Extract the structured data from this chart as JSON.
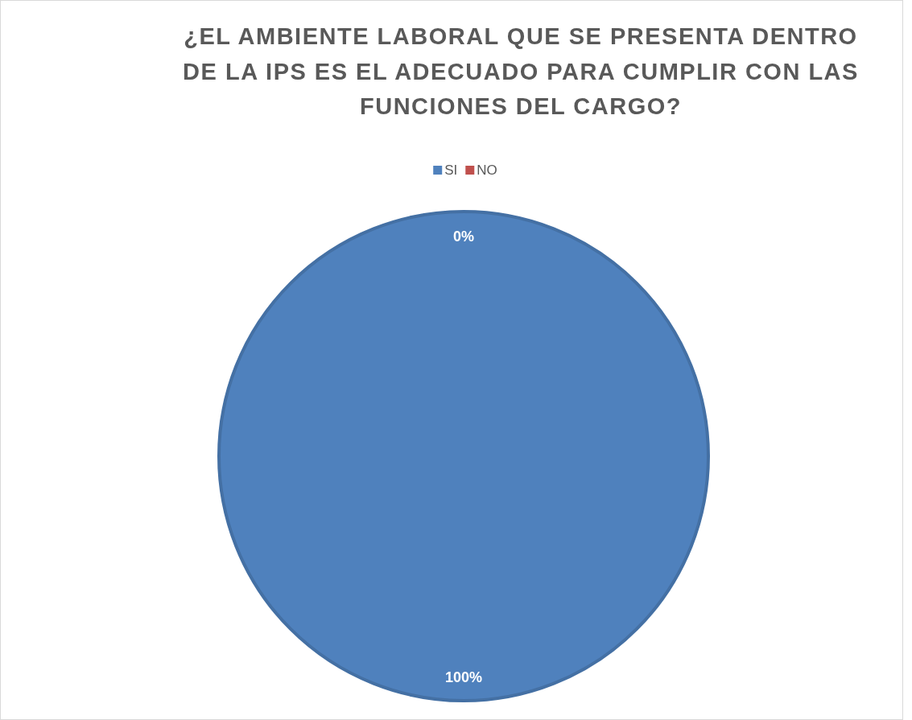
{
  "chart_data": {
    "type": "pie",
    "title": "¿EL AMBIENTE LABORAL QUE SE PRESENTA DENTRO DE LA IPS ES EL ADECUADO PARA CUMPLIR CON LAS FUNCIONES DEL CARGO?",
    "categories": [
      "SI",
      "NO"
    ],
    "values": [
      100,
      0
    ],
    "colors": [
      "#4f81bd",
      "#c0504d"
    ],
    "value_labels": [
      "100%",
      "0%"
    ],
    "legend": "top"
  }
}
